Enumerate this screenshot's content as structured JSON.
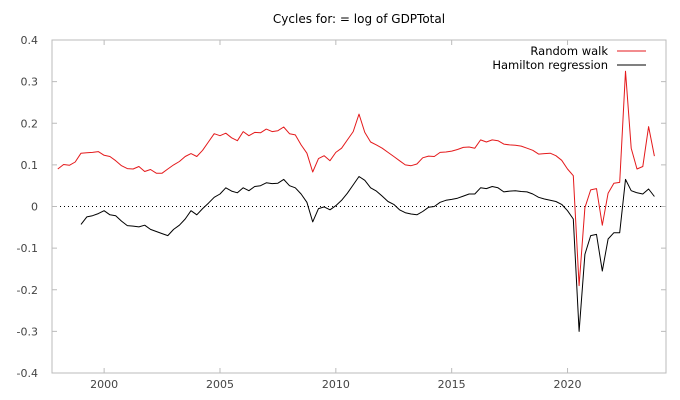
{
  "chart_data": {
    "type": "line",
    "title": "Cycles for: = log of GDPTotal",
    "xlabel": "",
    "ylabel": "",
    "xlim": [
      1997.75,
      2024.25
    ],
    "ylim": [
      -0.4,
      0.4
    ],
    "xticks": [
      2000,
      2005,
      2010,
      2015,
      2020
    ],
    "yticks": [
      -0.4,
      -0.3,
      -0.2,
      -0.1,
      0,
      0.1,
      0.2,
      0.3,
      0.4
    ],
    "ytick_labels": [
      "-0.4",
      "-0.3",
      "-0.2",
      "-0.1",
      "0",
      "0.1",
      "0.2",
      "0.3",
      "0.4"
    ],
    "zero_line": "dotted",
    "grid": false,
    "legend_position": "top-right",
    "series": [
      {
        "name": "Random walk",
        "color": "#e41a1c",
        "points": [
          [
            1998.0,
            0.09
          ],
          [
            1998.25,
            0.101
          ],
          [
            1998.5,
            0.099
          ],
          [
            1998.75,
            0.107
          ],
          [
            1999.0,
            0.128
          ],
          [
            1999.25,
            0.129
          ],
          [
            1999.5,
            0.13
          ],
          [
            1999.75,
            0.132
          ],
          [
            2000.0,
            0.123
          ],
          [
            2000.25,
            0.12
          ],
          [
            2000.5,
            0.11
          ],
          [
            2000.75,
            0.098
          ],
          [
            2001.0,
            0.091
          ],
          [
            2001.25,
            0.09
          ],
          [
            2001.5,
            0.096
          ],
          [
            2001.75,
            0.084
          ],
          [
            2002.0,
            0.089
          ],
          [
            2002.25,
            0.08
          ],
          [
            2002.5,
            0.08
          ],
          [
            2002.75,
            0.09
          ],
          [
            2003.0,
            0.1
          ],
          [
            2003.25,
            0.108
          ],
          [
            2003.5,
            0.12
          ],
          [
            2003.75,
            0.127
          ],
          [
            2004.0,
            0.12
          ],
          [
            2004.25,
            0.135
          ],
          [
            2004.5,
            0.155
          ],
          [
            2004.75,
            0.175
          ],
          [
            2005.0,
            0.17
          ],
          [
            2005.25,
            0.176
          ],
          [
            2005.5,
            0.165
          ],
          [
            2005.75,
            0.158
          ],
          [
            2006.0,
            0.18
          ],
          [
            2006.25,
            0.17
          ],
          [
            2006.5,
            0.178
          ],
          [
            2006.75,
            0.177
          ],
          [
            2007.0,
            0.186
          ],
          [
            2007.25,
            0.18
          ],
          [
            2007.5,
            0.182
          ],
          [
            2007.75,
            0.191
          ],
          [
            2008.0,
            0.175
          ],
          [
            2008.25,
            0.172
          ],
          [
            2008.5,
            0.148
          ],
          [
            2008.75,
            0.128
          ],
          [
            2009.0,
            0.083
          ],
          [
            2009.25,
            0.115
          ],
          [
            2009.5,
            0.122
          ],
          [
            2009.75,
            0.11
          ],
          [
            2010.0,
            0.13
          ],
          [
            2010.25,
            0.14
          ],
          [
            2010.5,
            0.16
          ],
          [
            2010.75,
            0.18
          ],
          [
            2011.0,
            0.222
          ],
          [
            2011.25,
            0.178
          ],
          [
            2011.5,
            0.155
          ],
          [
            2011.75,
            0.148
          ],
          [
            2012.0,
            0.14
          ],
          [
            2012.25,
            0.13
          ],
          [
            2012.5,
            0.12
          ],
          [
            2012.75,
            0.11
          ],
          [
            2013.0,
            0.1
          ],
          [
            2013.25,
            0.098
          ],
          [
            2013.5,
            0.102
          ],
          [
            2013.75,
            0.117
          ],
          [
            2014.0,
            0.121
          ],
          [
            2014.25,
            0.12
          ],
          [
            2014.5,
            0.13
          ],
          [
            2014.75,
            0.131
          ],
          [
            2015.0,
            0.133
          ],
          [
            2015.25,
            0.137
          ],
          [
            2015.5,
            0.142
          ],
          [
            2015.75,
            0.143
          ],
          [
            2016.0,
            0.14
          ],
          [
            2016.25,
            0.16
          ],
          [
            2016.5,
            0.155
          ],
          [
            2016.75,
            0.16
          ],
          [
            2017.0,
            0.158
          ],
          [
            2017.25,
            0.15
          ],
          [
            2017.5,
            0.148
          ],
          [
            2017.75,
            0.147
          ],
          [
            2018.0,
            0.145
          ],
          [
            2018.25,
            0.14
          ],
          [
            2018.5,
            0.135
          ],
          [
            2018.75,
            0.126
          ],
          [
            2019.0,
            0.127
          ],
          [
            2019.25,
            0.128
          ],
          [
            2019.5,
            0.122
          ],
          [
            2019.75,
            0.111
          ],
          [
            2020.0,
            0.09
          ],
          [
            2020.25,
            0.074
          ],
          [
            2020.5,
            -0.19
          ],
          [
            2020.75,
            -0.003
          ],
          [
            2021.0,
            0.04
          ],
          [
            2021.25,
            0.043
          ],
          [
            2021.5,
            -0.045
          ],
          [
            2021.75,
            0.032
          ],
          [
            2022.0,
            0.056
          ],
          [
            2022.25,
            0.058
          ],
          [
            2022.5,
            0.325
          ],
          [
            2022.75,
            0.14
          ],
          [
            2023.0,
            0.09
          ],
          [
            2023.25,
            0.096
          ],
          [
            2023.5,
            0.192
          ],
          [
            2023.75,
            0.121
          ]
        ]
      },
      {
        "name": "Hamilton regression",
        "color": "#000000",
        "points": [
          [
            1999.0,
            -0.043
          ],
          [
            1999.25,
            -0.025
          ],
          [
            1999.5,
            -0.022
          ],
          [
            1999.75,
            -0.017
          ],
          [
            2000.0,
            -0.01
          ],
          [
            2000.25,
            -0.02
          ],
          [
            2000.5,
            -0.022
          ],
          [
            2000.75,
            -0.035
          ],
          [
            2001.0,
            -0.046
          ],
          [
            2001.25,
            -0.047
          ],
          [
            2001.5,
            -0.049
          ],
          [
            2001.75,
            -0.045
          ],
          [
            2002.0,
            -0.055
          ],
          [
            2002.25,
            -0.06
          ],
          [
            2002.5,
            -0.065
          ],
          [
            2002.75,
            -0.07
          ],
          [
            2003.0,
            -0.055
          ],
          [
            2003.25,
            -0.045
          ],
          [
            2003.5,
            -0.03
          ],
          [
            2003.75,
            -0.01
          ],
          [
            2004.0,
            -0.02
          ],
          [
            2004.25,
            -0.005
          ],
          [
            2004.5,
            0.008
          ],
          [
            2004.75,
            0.022
          ],
          [
            2005.0,
            0.03
          ],
          [
            2005.25,
            0.045
          ],
          [
            2005.5,
            0.037
          ],
          [
            2005.75,
            0.033
          ],
          [
            2006.0,
            0.045
          ],
          [
            2006.25,
            0.038
          ],
          [
            2006.5,
            0.048
          ],
          [
            2006.75,
            0.05
          ],
          [
            2007.0,
            0.057
          ],
          [
            2007.25,
            0.055
          ],
          [
            2007.5,
            0.056
          ],
          [
            2007.75,
            0.065
          ],
          [
            2008.0,
            0.05
          ],
          [
            2008.25,
            0.045
          ],
          [
            2008.5,
            0.03
          ],
          [
            2008.75,
            0.01
          ],
          [
            2009.0,
            -0.037
          ],
          [
            2009.25,
            -0.005
          ],
          [
            2009.5,
            -0.001
          ],
          [
            2009.75,
            -0.008
          ],
          [
            2010.0,
            0.002
          ],
          [
            2010.25,
            0.015
          ],
          [
            2010.5,
            0.032
          ],
          [
            2010.75,
            0.052
          ],
          [
            2011.0,
            0.072
          ],
          [
            2011.25,
            0.063
          ],
          [
            2011.5,
            0.045
          ],
          [
            2011.75,
            0.037
          ],
          [
            2012.0,
            0.025
          ],
          [
            2012.25,
            0.012
          ],
          [
            2012.5,
            0.005
          ],
          [
            2012.75,
            -0.008
          ],
          [
            2013.0,
            -0.015
          ],
          [
            2013.25,
            -0.018
          ],
          [
            2013.5,
            -0.02
          ],
          [
            2013.75,
            -0.012
          ],
          [
            2014.0,
            -0.002
          ],
          [
            2014.25,
            0.0
          ],
          [
            2014.5,
            0.01
          ],
          [
            2014.75,
            0.015
          ],
          [
            2015.0,
            0.017
          ],
          [
            2015.25,
            0.02
          ],
          [
            2015.5,
            0.025
          ],
          [
            2015.75,
            0.03
          ],
          [
            2016.0,
            0.03
          ],
          [
            2016.25,
            0.045
          ],
          [
            2016.5,
            0.043
          ],
          [
            2016.75,
            0.048
          ],
          [
            2017.0,
            0.045
          ],
          [
            2017.25,
            0.035
          ],
          [
            2017.5,
            0.037
          ],
          [
            2017.75,
            0.038
          ],
          [
            2018.0,
            0.036
          ],
          [
            2018.25,
            0.035
          ],
          [
            2018.5,
            0.03
          ],
          [
            2018.75,
            0.022
          ],
          [
            2019.0,
            0.018
          ],
          [
            2019.25,
            0.015
          ],
          [
            2019.5,
            0.012
          ],
          [
            2019.75,
            0.005
          ],
          [
            2020.0,
            -0.01
          ],
          [
            2020.25,
            -0.03
          ],
          [
            2020.5,
            -0.3
          ],
          [
            2020.75,
            -0.115
          ],
          [
            2021.0,
            -0.07
          ],
          [
            2021.25,
            -0.067
          ],
          [
            2021.5,
            -0.155
          ],
          [
            2021.75,
            -0.078
          ],
          [
            2022.0,
            -0.063
          ],
          [
            2022.25,
            -0.063
          ],
          [
            2022.5,
            0.065
          ],
          [
            2022.75,
            0.038
          ],
          [
            2023.0,
            0.033
          ],
          [
            2023.25,
            0.03
          ],
          [
            2023.5,
            0.042
          ],
          [
            2023.75,
            0.024
          ]
        ]
      }
    ]
  }
}
